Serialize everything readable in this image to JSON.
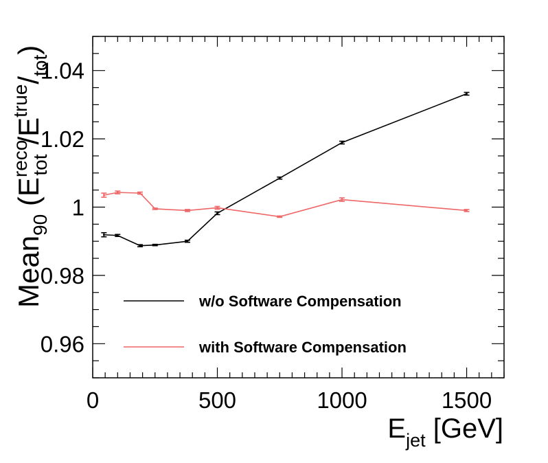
{
  "chart_data": {
    "type": "line",
    "xlabel": {
      "main": "E",
      "sub": "jet",
      "unit": " [GeV]"
    },
    "ylabel": {
      "p1": "Mean",
      "p1_sub": "90",
      "p2": " (E",
      "p2_sup": "reco",
      "p2_sub": "tot",
      "p3": "/E",
      "p3_sup": "true",
      "p4": "/",
      "p4_sub": "tot",
      "p5": ")"
    },
    "xlim": [
      0,
      1650
    ],
    "ylim": [
      0.95,
      1.05
    ],
    "xticks": [
      0,
      500,
      1000,
      1500
    ],
    "xtick_labels": [
      "0",
      "500",
      "1000",
      "1500"
    ],
    "yticks": [
      0.96,
      0.98,
      1.0,
      1.02,
      1.04
    ],
    "ytick_labels": [
      "0.96",
      "0.98",
      "1",
      "1.02",
      "1.04"
    ],
    "x_minor_step": 50,
    "y_minor_step": 0.005,
    "grid": false,
    "legend_position": "bottom-center",
    "series": [
      {
        "name": "w/o Software Compensation",
        "color": "#000000",
        "x": [
          45,
          100,
          190,
          250,
          380,
          500,
          750,
          1000,
          1500
        ],
        "y": [
          0.9919,
          0.9917,
          0.9887,
          0.9889,
          0.99,
          0.9982,
          1.0085,
          1.0189,
          1.0332
        ],
        "err": [
          0.0006,
          0.0003,
          0.0003,
          0.0002,
          0.0003,
          0.0004,
          0.0003,
          0.0004,
          0.0004
        ]
      },
      {
        "name": "with Software Compensation",
        "color": "#ee6666",
        "x": [
          45,
          100,
          190,
          250,
          380,
          500,
          750,
          1000,
          1500
        ],
        "y": [
          1.0035,
          1.0043,
          1.0041,
          0.9995,
          0.999,
          0.9998,
          0.9972,
          1.0022,
          0.999
        ],
        "err": [
          0.0006,
          0.0004,
          0.0003,
          0.0002,
          0.0003,
          0.0004,
          0.0002,
          0.0005,
          0.0003
        ]
      }
    ]
  }
}
